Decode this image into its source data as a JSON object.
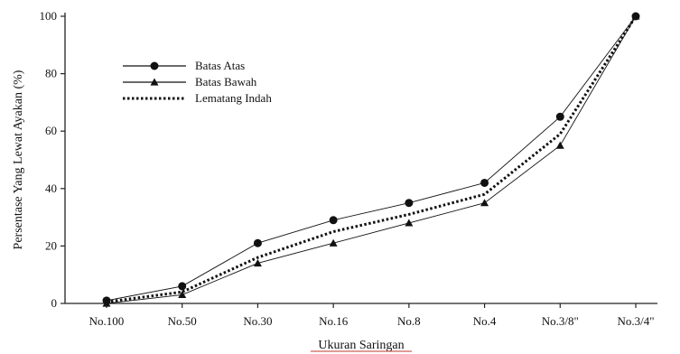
{
  "chart_data": {
    "type": "line",
    "title": "",
    "xlabel": "Ukuran Saringan",
    "ylabel": "Persentase Yang Lewat Ayakan (%)",
    "categories": [
      "No.100",
      "No.50",
      "No.30",
      "No.16",
      "No.8",
      "No.4",
      "No.3/8\"",
      "No.3/4\""
    ],
    "ylim": [
      0,
      100
    ],
    "yticks": [
      "0",
      "20",
      "40",
      "60",
      "80",
      "100"
    ],
    "grid": false,
    "legend_position": "top-left",
    "series": [
      {
        "name": "Batas Atas",
        "marker": "circle",
        "line_style": "solid",
        "values": [
          1,
          6,
          21,
          29,
          35,
          42,
          65,
          100
        ]
      },
      {
        "name": "Batas Bawah",
        "marker": "triangle",
        "line_style": "solid",
        "values": [
          0,
          3,
          14,
          21,
          28,
          35,
          55,
          100
        ]
      },
      {
        "name": "Lematang Indah",
        "marker": "none",
        "line_style": "dotted",
        "values": [
          0.5,
          4,
          16,
          25,
          31,
          38,
          59,
          100
        ]
      }
    ]
  }
}
